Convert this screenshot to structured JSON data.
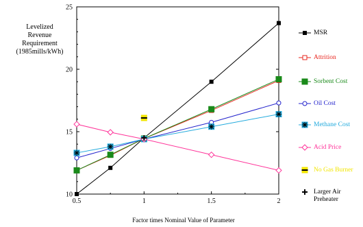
{
  "chart_data": {
    "type": "line",
    "xlabel": "Factor times Nominal Value of Parameter",
    "ylabel_lines": [
      "Levelized",
      "Revenue",
      "Requirement",
      "(1985mills/kWh)"
    ],
    "xlim": [
      0.5,
      2
    ],
    "ylim": [
      10,
      25
    ],
    "x_ticks": [
      0.5,
      1,
      1.5,
      2
    ],
    "y_ticks": [
      10,
      15,
      20,
      25
    ],
    "x_tick_labels": [
      "0.5",
      "1",
      "1.5",
      "2"
    ],
    "y_tick_labels": [
      "10",
      "15",
      "20",
      "25"
    ],
    "series": [
      {
        "name": "MSR",
        "color": "#000000",
        "marker": "square-filled",
        "x": [
          0.5,
          0.75,
          1,
          1.5,
          2
        ],
        "y": [
          10.0,
          12.1,
          14.5,
          19.0,
          23.7
        ]
      },
      {
        "name": "Attrition",
        "color": "#e8261e",
        "marker": "square-open",
        "x": [
          0.5,
          0.75,
          1,
          1.5,
          2
        ],
        "y": [
          11.9,
          13.1,
          14.45,
          16.7,
          19.1
        ]
      },
      {
        "name": "Sorbent Cost",
        "color": "#1a8a1a",
        "marker": "square-filled-large",
        "x": [
          0.5,
          0.75,
          1,
          1.5,
          2
        ],
        "y": [
          11.9,
          13.15,
          14.45,
          16.8,
          19.2
        ]
      },
      {
        "name": "Oil Cost",
        "color": "#2222cc",
        "marker": "circle-open",
        "x": [
          0.5,
          0.75,
          1,
          1.5,
          2
        ],
        "y": [
          12.9,
          13.65,
          14.4,
          15.75,
          17.3
        ]
      },
      {
        "name": "Methane Cost",
        "color": "#22aadd",
        "marker": "asterisk-square",
        "x": [
          0.5,
          0.75,
          1,
          1.5,
          2
        ],
        "y": [
          13.3,
          13.8,
          14.4,
          15.4,
          16.4
        ]
      },
      {
        "name": "Acid Price",
        "color": "#ff3399",
        "marker": "diamond-open",
        "x": [
          0.5,
          0.75,
          1,
          1.5,
          2
        ],
        "y": [
          15.6,
          14.95,
          14.4,
          13.15,
          11.9
        ]
      },
      {
        "name": "No Gas Burner",
        "color": "#f2e600",
        "marker": "square-bar",
        "x": [
          1
        ],
        "y": [
          16.1
        ]
      },
      {
        "name": "Larger Air Preheater",
        "color": "#000000",
        "marker": "plus",
        "x": [
          1
        ],
        "y": [
          14.5
        ]
      }
    ]
  }
}
